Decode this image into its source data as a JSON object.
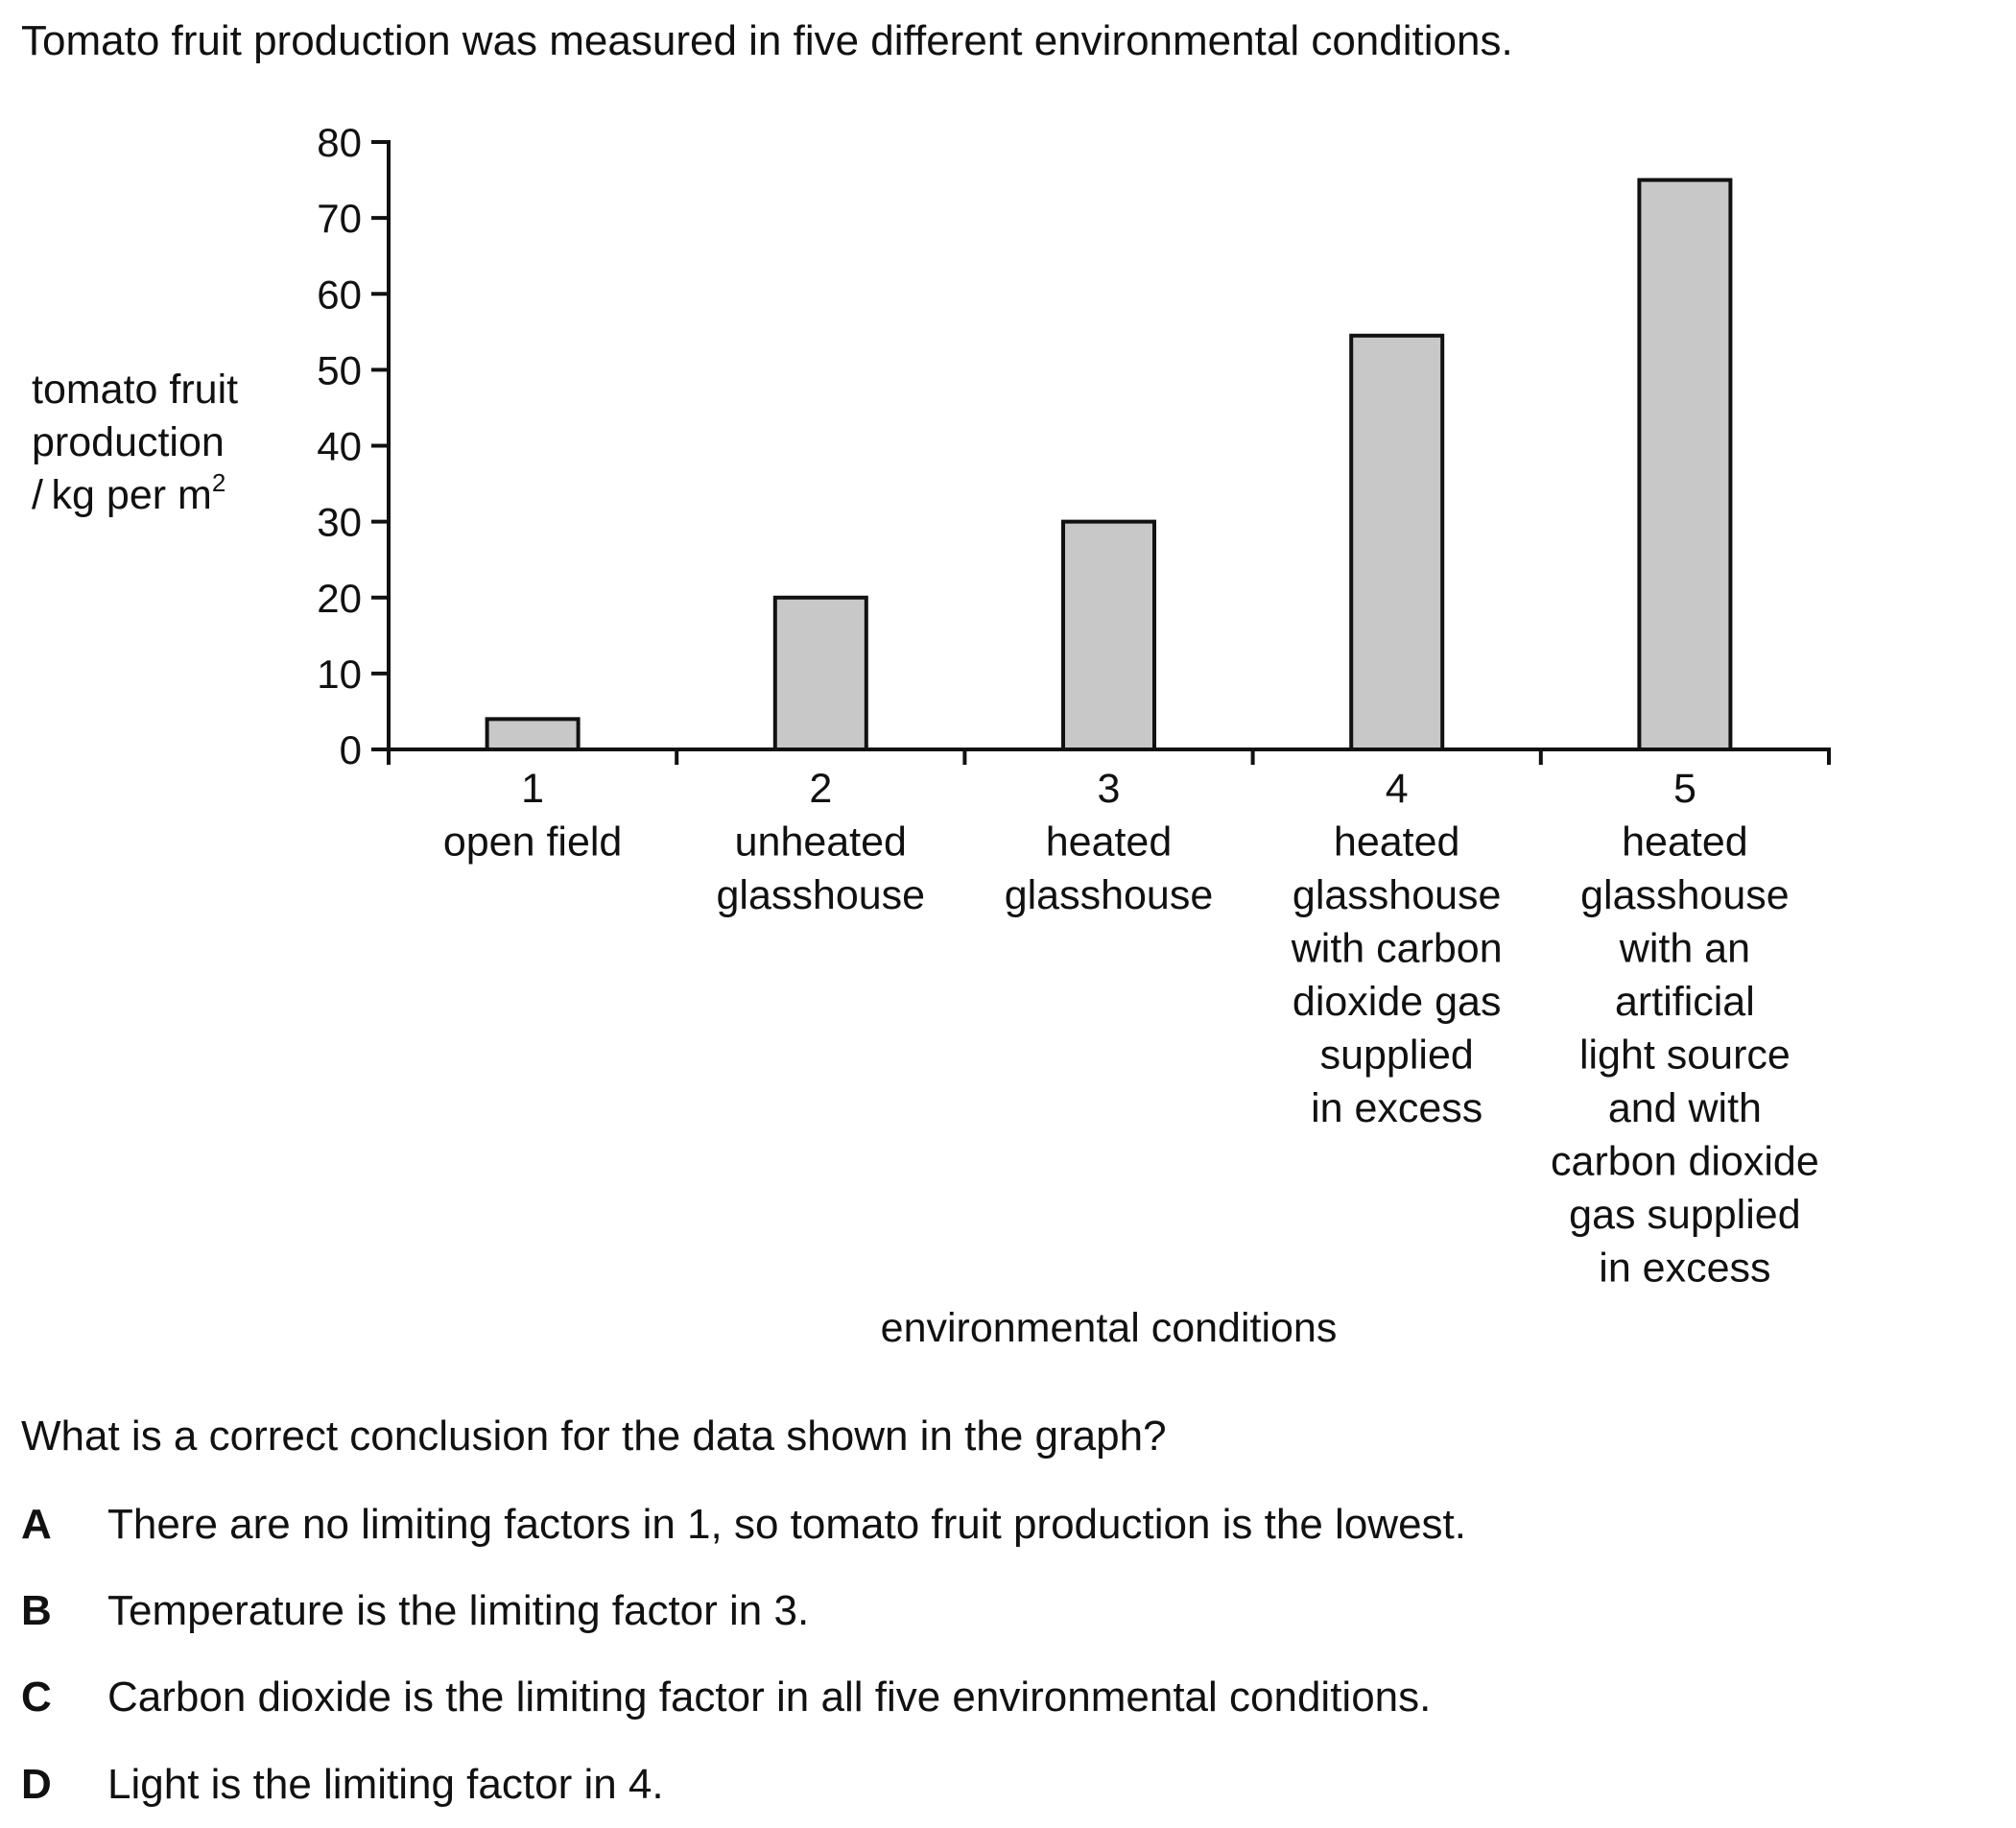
{
  "intro_text": "Tomato fruit production was measured in five different environmental conditions.",
  "chart_data": {
    "type": "bar",
    "categories": [
      "1",
      "2",
      "3",
      "4",
      "5"
    ],
    "category_descriptions": [
      [
        "open field"
      ],
      [
        "unheated",
        "glasshouse"
      ],
      [
        "heated",
        "glasshouse"
      ],
      [
        "heated",
        "glasshouse",
        "with carbon",
        "dioxide gas",
        "supplied",
        "in excess"
      ],
      [
        "heated",
        "glasshouse",
        "with an",
        "artificial",
        "light source",
        "and with",
        "carbon dioxide",
        "gas supplied",
        "in excess"
      ]
    ],
    "values": [
      4,
      20,
      30,
      54.5,
      75
    ],
    "ylabel_lines": [
      "tomato fruit",
      "production",
      "/ kg per m"
    ],
    "ylabel_superscript": "2",
    "xlabel": "environmental conditions",
    "ylim": [
      0,
      80
    ],
    "yticks": [
      0,
      10,
      20,
      30,
      40,
      50,
      60,
      70,
      80
    ],
    "grid": false,
    "bar_color": "#c8c8c8",
    "edge_color": "#111111"
  },
  "question": "What is a correct conclusion for the data shown in the graph?",
  "options": [
    {
      "letter": "A",
      "text": "There are no limiting factors in 1, so tomato fruit production is the lowest."
    },
    {
      "letter": "B",
      "text": "Temperature is the limiting factor in 3."
    },
    {
      "letter": "C",
      "text": "Carbon dioxide is the limiting factor in all five environmental conditions."
    },
    {
      "letter": "D",
      "text": "Light is the limiting factor in 4."
    }
  ]
}
